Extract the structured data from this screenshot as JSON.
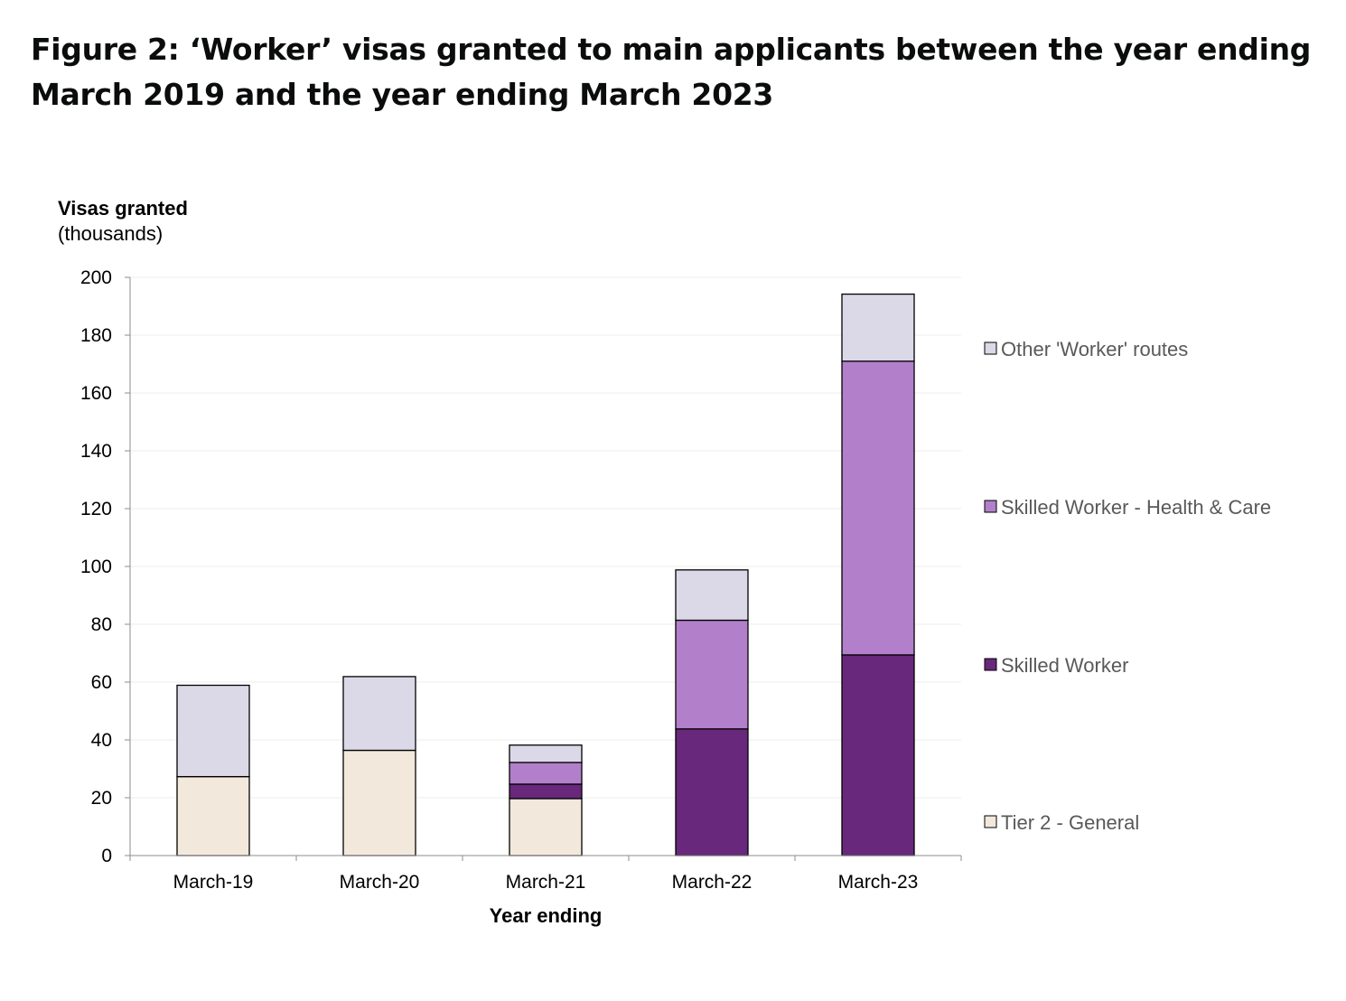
{
  "title": "Figure 2: ‘Worker’ visas granted to main applicants between the year ending March 2019 and the year ending March 2023",
  "chart_data": {
    "type": "bar",
    "stacked": true,
    "title": "Figure 2: ‘Worker’ visas granted to main applicants between the year ending March 2019 and the year ending March 2023",
    "ylabel": "Visas granted",
    "ylabel_sub": "(thousands)",
    "xlabel": "Year ending",
    "ylim": [
      0,
      200
    ],
    "yticks": [
      0,
      20,
      40,
      60,
      80,
      100,
      120,
      140,
      160,
      180,
      200
    ],
    "grid": true,
    "legend_position": "right",
    "categories": [
      "March-19",
      "March-20",
      "March-21",
      "March-22",
      "March-23"
    ],
    "series": [
      {
        "name": "Tier 2 - General",
        "color": "#f3e8dc",
        "values": [
          27.3,
          36.4,
          19.7,
          0,
          0
        ]
      },
      {
        "name": "Skilled Worker",
        "color": "#68287b",
        "values": [
          0,
          0,
          5.0,
          43.8,
          69.4
        ]
      },
      {
        "name": "Skilled Worker - Health & Care",
        "color": "#b280cb",
        "values": [
          0,
          0,
          7.5,
          37.6,
          101.6
        ]
      },
      {
        "name": "Other 'Worker' routes",
        "color": "#dbd9e7",
        "values": [
          31.6,
          25.5,
          6.0,
          17.4,
          23.2
        ]
      }
    ]
  }
}
